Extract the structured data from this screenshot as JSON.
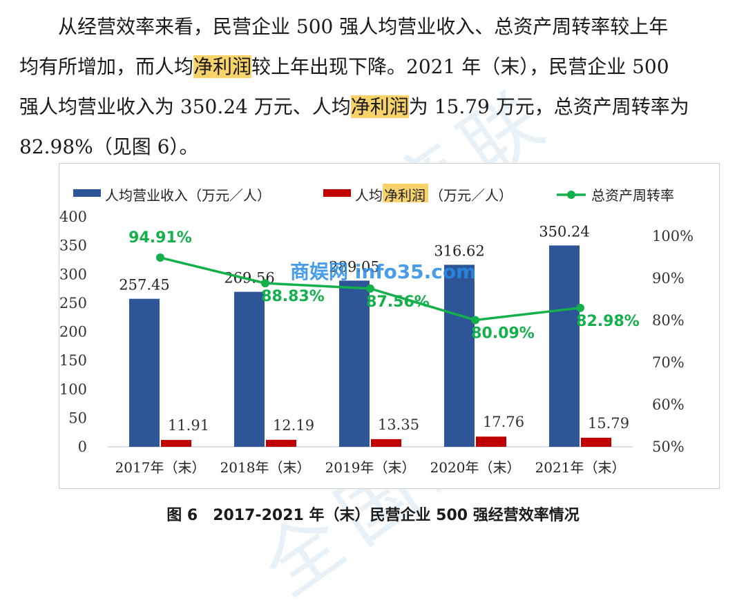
{
  "paragraph": {
    "line1": "从经营效率来看，民营企业 500 强人均营业收入、总资产周转率较上年",
    "line2_a": "均有所增加，而人均",
    "line2_hl": "净利润",
    "line2_b": "较上年出现下降。2021 年（末），民营企业 500",
    "line3_a": "强人均营业收入为 350.24 万元、人均",
    "line3_hl": "净利润",
    "line3_b": "为 15.79 万元，总资产周转率为",
    "line4": "82.98%（见图 6）。"
  },
  "caption": "图 6　2017-2021 年（末）民营企业 500 强经营效率情况",
  "watermark_text": "全国工商联",
  "site_watermark": "商娱网 info35.com",
  "chart_data": {
    "type": "bar",
    "categories": [
      "2017年（末）",
      "2018年（末）",
      "2019年（末）",
      "2020年（末）",
      "2021年（末）"
    ],
    "series": [
      {
        "name": "人均营业收入（万元／人）",
        "kind": "bar",
        "axis": "left",
        "color": "#2e5597",
        "values": [
          257.45,
          269.56,
          289.05,
          316.62,
          350.24
        ],
        "labels": [
          "257.45",
          "269.56",
          "289.05",
          "316.62",
          "350.24"
        ]
      },
      {
        "name": "人均净利润（万元／人）",
        "kind": "bar",
        "axis": "left",
        "color": "#c00000",
        "values": [
          11.91,
          12.19,
          13.35,
          17.76,
          15.79
        ],
        "labels": [
          "11.91",
          "12.19",
          "13.35",
          "17.76",
          "15.79"
        ]
      },
      {
        "name": "总资产周转率",
        "kind": "line",
        "axis": "right",
        "color": "#13b04b",
        "values": [
          94.91,
          88.83,
          87.56,
          80.09,
          82.98
        ],
        "labels": [
          "94.91%",
          "88.83%",
          "87.56%",
          "80.09%",
          "82.98%"
        ]
      }
    ],
    "legend_parts": {
      "s1": "人均营业收入（万元／人）",
      "s2_a": "人均",
      "s2_hl": "净利润",
      "s2_b": "（万元／人）",
      "s3": "总资产周转率"
    },
    "y_left": {
      "min": 0,
      "max": 400,
      "ticks": [
        "0",
        "50",
        "100",
        "150",
        "200",
        "250",
        "300",
        "350",
        "400"
      ]
    },
    "y_right": {
      "min": 50,
      "max": 100,
      "ticks": [
        "50%",
        "60%",
        "70%",
        "80%",
        "90%",
        "100%"
      ]
    },
    "legend_position": "top",
    "grid": false
  }
}
